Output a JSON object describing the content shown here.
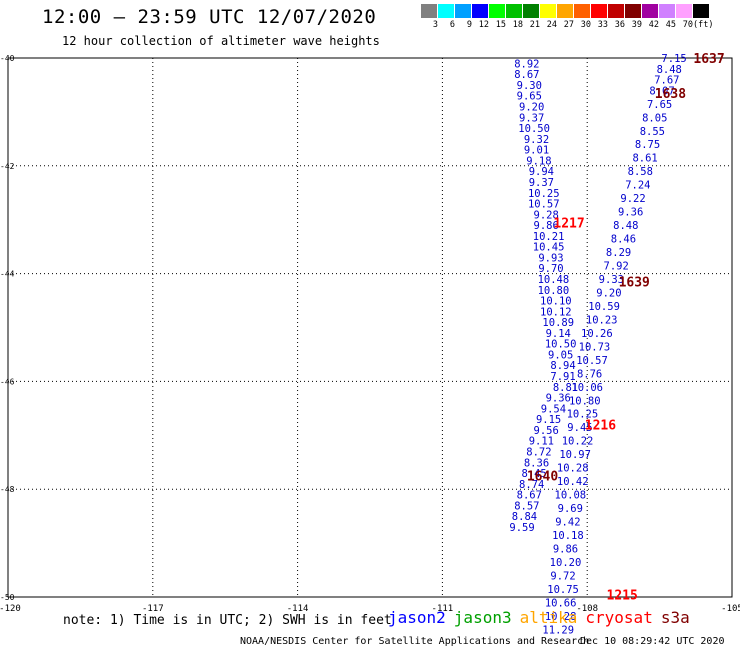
{
  "header": {
    "title": "12:00 – 23:59 UTC 12/07/2020",
    "subtitle": "12 hour collection of altimeter wave heights"
  },
  "legend": {
    "colors": [
      "#808080",
      "#00ffff",
      "#00a0ff",
      "#0000ff",
      "#00ff00",
      "#00c000",
      "#008000",
      "#ffff00",
      "#ffa500",
      "#ff6000",
      "#ff0000",
      "#c00000",
      "#800000",
      "#a000a0",
      "#d080ff",
      "#ffa0ff",
      "#000000"
    ],
    "labels": [
      "3",
      "6",
      "9",
      "12",
      "15",
      "18",
      "21",
      "24",
      "27",
      "30",
      "33",
      "36",
      "39",
      "42",
      "45",
      "70",
      "(ft)"
    ]
  },
  "map": {
    "x_ticks": [
      "-120",
      "-117",
      "-114",
      "-111",
      "-108",
      "-105"
    ],
    "y_ticks": [
      "-40",
      "-42",
      "-44",
      "-46",
      "-48",
      "-50"
    ],
    "time_labels": [
      {
        "text": "1637",
        "lon": -105.8,
        "lat": -40.0,
        "color": "#800000"
      },
      {
        "text": "1638",
        "lon": -106.6,
        "lat": -40.65,
        "color": "#800000"
      },
      {
        "text": "1217",
        "lon": -108.7,
        "lat": -43.05,
        "color": "#ff0000"
      },
      {
        "text": "1639",
        "lon": -107.35,
        "lat": -44.15,
        "color": "#800000"
      },
      {
        "text": "1216",
        "lon": -108.05,
        "lat": -46.8,
        "color": "#ff0000"
      },
      {
        "text": "1640",
        "lon": -109.25,
        "lat": -47.75,
        "color": "#800000"
      },
      {
        "text": "1215",
        "lon": -107.6,
        "lat": -49.95,
        "color": "#ff0000"
      }
    ],
    "swh_tracks": [
      {
        "name": "jason2",
        "color": "#0000cc",
        "points": [
          {
            "lon": -109.25,
            "lat": -40.1,
            "v": "8.92"
          },
          {
            "lon": -109.25,
            "lat": -40.3,
            "v": "8.67"
          },
          {
            "lon": -109.2,
            "lat": -40.5,
            "v": "9.30"
          },
          {
            "lon": -109.2,
            "lat": -40.7,
            "v": "9.65"
          },
          {
            "lon": -109.15,
            "lat": -40.9,
            "v": "9.20"
          },
          {
            "lon": -109.15,
            "lat": -41.1,
            "v": "9.37"
          },
          {
            "lon": -109.1,
            "lat": -41.3,
            "v": "10.50"
          },
          {
            "lon": -109.05,
            "lat": -41.5,
            "v": "9.32"
          },
          {
            "lon": -109.05,
            "lat": -41.7,
            "v": "9.01"
          },
          {
            "lon": -109.0,
            "lat": -41.9,
            "v": "9.18"
          },
          {
            "lon": -108.95,
            "lat": -42.1,
            "v": "9.94"
          },
          {
            "lon": -108.95,
            "lat": -42.3,
            "v": "9.37"
          },
          {
            "lon": -108.9,
            "lat": -42.5,
            "v": "10.25"
          },
          {
            "lon": -108.9,
            "lat": -42.7,
            "v": "10.57"
          },
          {
            "lon": -108.85,
            "lat": -42.9,
            "v": "9.28"
          },
          {
            "lon": -108.85,
            "lat": -43.1,
            "v": "9.86"
          },
          {
            "lon": -108.8,
            "lat": -43.3,
            "v": "10.21"
          },
          {
            "lon": -108.8,
            "lat": -43.5,
            "v": "10.45"
          },
          {
            "lon": -108.75,
            "lat": -43.7,
            "v": "9.93"
          },
          {
            "lon": -108.75,
            "lat": -43.9,
            "v": "9.70"
          },
          {
            "lon": -108.7,
            "lat": -44.1,
            "v": "10.48"
          },
          {
            "lon": -108.7,
            "lat": -44.3,
            "v": "10.80"
          },
          {
            "lon": -108.65,
            "lat": -44.5,
            "v": "10.10"
          },
          {
            "lon": -108.65,
            "lat": -44.7,
            "v": "10.12"
          },
          {
            "lon": -108.6,
            "lat": -44.9,
            "v": "10.89"
          },
          {
            "lon": -108.6,
            "lat": -45.1,
            "v": "9.14"
          },
          {
            "lon": -108.55,
            "lat": -45.3,
            "v": "10.50"
          },
          {
            "lon": -108.55,
            "lat": -45.5,
            "v": "9.05"
          },
          {
            "lon": -108.5,
            "lat": -45.7,
            "v": "8.94"
          },
          {
            "lon": -108.5,
            "lat": -45.9,
            "v": "7.91"
          },
          {
            "lon": -108.45,
            "lat": -46.1,
            "v": "8.81"
          },
          {
            "lon": -108.6,
            "lat": -46.3,
            "v": "9.36"
          },
          {
            "lon": -108.7,
            "lat": -46.5,
            "v": "9.54"
          },
          {
            "lon": -108.8,
            "lat": -46.7,
            "v": "9.15"
          },
          {
            "lon": -108.85,
            "lat": -46.9,
            "v": "9.56"
          },
          {
            "lon": -108.95,
            "lat": -47.1,
            "v": "9.11"
          },
          {
            "lon": -109.0,
            "lat": -47.3,
            "v": "8.72"
          },
          {
            "lon": -109.05,
            "lat": -47.5,
            "v": "8.36"
          },
          {
            "lon": -109.1,
            "lat": -47.7,
            "v": "8.45"
          },
          {
            "lon": -109.15,
            "lat": -47.9,
            "v": "8.74"
          },
          {
            "lon": -109.2,
            "lat": -48.1,
            "v": "8.67"
          },
          {
            "lon": -109.25,
            "lat": -48.3,
            "v": "8.57"
          },
          {
            "lon": -109.3,
            "lat": -48.5,
            "v": "8.84"
          },
          {
            "lon": -109.35,
            "lat": -48.7,
            "v": "9.59"
          }
        ]
      },
      {
        "name": "cryosat",
        "color": "#0000cc",
        "points": [
          {
            "lon": -106.2,
            "lat": -40.0,
            "v": "7.15"
          },
          {
            "lon": -106.3,
            "lat": -40.2,
            "v": "8.48"
          },
          {
            "lon": -106.35,
            "lat": -40.4,
            "v": "7.67"
          },
          {
            "lon": -106.45,
            "lat": -40.6,
            "v": "8.07"
          },
          {
            "lon": -106.5,
            "lat": -40.85,
            "v": "7.65"
          },
          {
            "lon": -106.6,
            "lat": -41.1,
            "v": "8.05"
          },
          {
            "lon": -106.65,
            "lat": -41.35,
            "v": "8.55"
          },
          {
            "lon": -106.75,
            "lat": -41.6,
            "v": "8.75"
          },
          {
            "lon": -106.8,
            "lat": -41.85,
            "v": "8.61"
          },
          {
            "lon": -106.9,
            "lat": -42.1,
            "v": "8.58"
          },
          {
            "lon": -106.95,
            "lat": -42.35,
            "v": "7.24"
          },
          {
            "lon": -107.05,
            "lat": -42.6,
            "v": "9.22"
          },
          {
            "lon": -107.1,
            "lat": -42.85,
            "v": "9.36"
          },
          {
            "lon": -107.2,
            "lat": -43.1,
            "v": "8.48"
          },
          {
            "lon": -107.25,
            "lat": -43.35,
            "v": "8.46"
          },
          {
            "lon": -107.35,
            "lat": -43.6,
            "v": "8.29"
          },
          {
            "lon": -107.4,
            "lat": -43.85,
            "v": "7.92"
          },
          {
            "lon": -107.5,
            "lat": -44.1,
            "v": "9.33"
          },
          {
            "lon": -107.55,
            "lat": -44.35,
            "v": "9.20"
          },
          {
            "lon": -107.65,
            "lat": -44.6,
            "v": "10.59"
          },
          {
            "lon": -107.7,
            "lat": -44.85,
            "v": "10.23"
          },
          {
            "lon": -107.8,
            "lat": -45.1,
            "v": "10.26"
          },
          {
            "lon": -107.85,
            "lat": -45.35,
            "v": "10.73"
          },
          {
            "lon": -107.9,
            "lat": -45.6,
            "v": "10.57"
          },
          {
            "lon": -107.95,
            "lat": -45.85,
            "v": "8.76"
          },
          {
            "lon": -108.0,
            "lat": -46.1,
            "v": "10.06"
          },
          {
            "lon": -108.05,
            "lat": -46.35,
            "v": "10.80"
          },
          {
            "lon": -108.1,
            "lat": -46.6,
            "v": "10.25"
          },
          {
            "lon": -108.15,
            "lat": -46.85,
            "v": "9.45"
          },
          {
            "lon": -108.2,
            "lat": -47.1,
            "v": "10.22"
          },
          {
            "lon": -108.25,
            "lat": -47.35,
            "v": "10.97"
          },
          {
            "lon": -108.3,
            "lat": -47.6,
            "v": "10.28"
          },
          {
            "lon": -108.3,
            "lat": -47.85,
            "v": "10.42"
          },
          {
            "lon": -108.35,
            "lat": -48.1,
            "v": "10.08"
          },
          {
            "lon": -108.35,
            "lat": -48.35,
            "v": "9.69"
          },
          {
            "lon": -108.4,
            "lat": -48.6,
            "v": "9.42"
          },
          {
            "lon": -108.4,
            "lat": -48.85,
            "v": "10.18"
          },
          {
            "lon": -108.45,
            "lat": -49.1,
            "v": "9.86"
          },
          {
            "lon": -108.45,
            "lat": -49.35,
            "v": "10.20"
          },
          {
            "lon": -108.5,
            "lat": -49.6,
            "v": "9.72"
          },
          {
            "lon": -108.5,
            "lat": -49.85,
            "v": "10.75"
          },
          {
            "lon": -108.55,
            "lat": -50.1,
            "v": "10.66"
          },
          {
            "lon": -108.55,
            "lat": -50.35,
            "v": "10.28"
          },
          {
            "lon": -108.6,
            "lat": -50.6,
            "v": "11.29"
          }
        ]
      }
    ]
  },
  "footer": {
    "note": "note: 1) Time is in UTC; 2) SWH is in feet",
    "satellites": [
      {
        "name": "jason2",
        "color": "#0000ff"
      },
      {
        "name": "jason3",
        "color": "#00a000"
      },
      {
        "name": "altika",
        "color": "#ffa500"
      },
      {
        "name": "cryosat",
        "color": "#ff0000"
      },
      {
        "name": "s3a",
        "color": "#800000"
      }
    ],
    "credit": "NOAA/NESDIS Center for Satellite Applications and Research",
    "timestamp": "Dec 10 08:29:42 UTC 2020"
  }
}
